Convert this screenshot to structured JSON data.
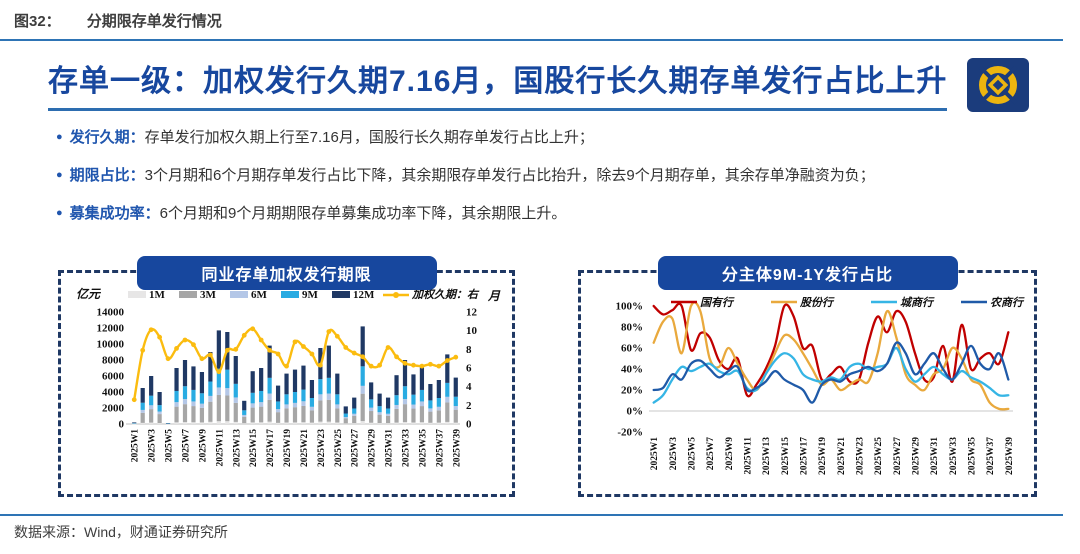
{
  "page": {
    "figure_label": "图32：",
    "figure_title": "分期限存单发行情况",
    "headline": "存单一级：加权发行久期7.16月，国股行长久期存单发行占比上升",
    "source": "数据来源：Wind，财通证券研究所"
  },
  "bullets": [
    {
      "label": "发行久期：",
      "text": "存单发行加权久期上行至7.16月，国股行长久期存单发行占比上升；"
    },
    {
      "label": "期限占比：",
      "text": "3个月期和6个月期存单发行占比下降，其余期限存单发行占比抬升，除去9个月期存单，其余存单净融资为负；"
    },
    {
      "label": "募集成功率：",
      "text": "6个月期和9个月期期限存单募集成功率下降，其余期限上升。"
    }
  ],
  "colors": {
    "rule_blue": "#2e74b5",
    "headline_blue": "#17479e",
    "pill_navy": "#17479e",
    "dashed_border_navy": "#1f3864",
    "logo_navy": "#1b3c7c",
    "logo_gold": "#edb50f"
  },
  "chart_data": [
    {
      "type": "bar",
      "title": "同业存单加权发行期限",
      "left_axis_label": "亿元",
      "right_axis_label": "月",
      "left_ylim": [
        0,
        14000
      ],
      "left_ticks": [
        0,
        2000,
        4000,
        6000,
        8000,
        10000,
        12000,
        14000
      ],
      "right_ylim": [
        0,
        12
      ],
      "right_ticks": [
        0,
        2,
        4,
        6,
        8,
        10,
        12
      ],
      "legend_position": "top",
      "grid": false,
      "x": [
        "2025W1",
        "2025W2",
        "2025W3",
        "2025W4",
        "2025W5",
        "2025W6",
        "2025W7",
        "2025W8",
        "2025W9",
        "2025W10",
        "2025W11",
        "2025W12",
        "2025W13",
        "2025W14",
        "2025W15",
        "2025W16",
        "2025W17",
        "2025W18",
        "2025W19",
        "2025W20",
        "2025W21",
        "2025W22",
        "2025W23",
        "2025W24",
        "2025W25",
        "2025W26",
        "2025W27",
        "2025W28",
        "2025W29",
        "2025W30",
        "2025W31",
        "2025W32",
        "2025W33",
        "2025W34",
        "2025W35",
        "2025W36",
        "2025W37",
        "2025W38",
        "2025W39"
      ],
      "series": [
        {
          "name": "1M",
          "type": "bar",
          "color": "#e7e6e6",
          "values": [
            10,
            140,
            180,
            120,
            5,
            210,
            240,
            220,
            200,
            270,
            350,
            350,
            260,
            90,
            200,
            210,
            290,
            140,
            190,
            200,
            220,
            170,
            290,
            290,
            190,
            70,
            100,
            370,
            160,
            110,
            100,
            180,
            240,
            190,
            220,
            150,
            170,
            260,
            170
          ]
        },
        {
          "name": "3M",
          "type": "bar",
          "color": "#a6a6a6",
          "values": [
            60,
            1260,
            1680,
            1120,
            30,
            1960,
            2240,
            2020,
            1820,
            2520,
            3280,
            3220,
            2380,
            810,
            1850,
            1960,
            2740,
            1340,
            1760,
            1900,
            2040,
            1540,
            2660,
            2740,
            1760,
            620,
            920,
            3420,
            1460,
            1060,
            920,
            1710,
            2240,
            1740,
            2020,
            1400,
            1540,
            2440,
            1620
          ]
        },
        {
          "name": "6M",
          "type": "bar",
          "color": "#b4c7e7",
          "values": [
            15,
            360,
            480,
            320,
            10,
            560,
            640,
            580,
            520,
            720,
            940,
            920,
            680,
            230,
            530,
            560,
            780,
            380,
            500,
            540,
            580,
            440,
            760,
            780,
            500,
            180,
            260,
            980,
            420,
            300,
            260,
            490,
            640,
            500,
            580,
            400,
            440,
            700,
            460
          ]
        },
        {
          "name": "9M",
          "type": "bar",
          "color": "#29abe2",
          "values": [
            40,
            900,
            1200,
            800,
            20,
            1400,
            1600,
            1440,
            1300,
            1800,
            2340,
            2300,
            1700,
            580,
            1320,
            1400,
            1960,
            960,
            1260,
            1360,
            1460,
            1100,
            1900,
            1960,
            1260,
            440,
            660,
            2440,
            1040,
            760,
            660,
            1220,
            1600,
            1240,
            1440,
            1000,
            1100,
            1740,
            1160
          ]
        },
        {
          "name": "12M",
          "type": "bar",
          "color": "#1f3864",
          "values": [
            75,
            1840,
            2460,
            1640,
            35,
            2870,
            3280,
            2940,
            2660,
            3690,
            4790,
            4710,
            3480,
            1190,
            2700,
            2870,
            4030,
            1980,
            2590,
            2800,
            3000,
            2250,
            3890,
            4030,
            2590,
            890,
            1360,
            4990,
            2120,
            1570,
            1360,
            2500,
            3280,
            2530,
            2940,
            2050,
            2250,
            3560,
            2390
          ]
        },
        {
          "name": "加权久期：右",
          "type": "line",
          "axis": "right",
          "color": "#fbbc0f",
          "values": [
            2.6,
            7.9,
            10.1,
            9.3,
            7.0,
            8.1,
            9.0,
            8.5,
            7.0,
            7.4,
            5.6,
            7.9,
            8.0,
            9.5,
            10.2,
            9.0,
            7.9,
            7.5,
            6.2,
            8.8,
            8.3,
            7.5,
            6.3,
            9.9,
            9.4,
            8.2,
            7.6,
            7.2,
            6.2,
            6.3,
            8.2,
            7.2,
            6.5,
            6.3,
            6.2,
            6.4,
            6.2,
            6.8,
            7.16
          ]
        }
      ]
    },
    {
      "type": "line",
      "title": "分主体9M-1Y发行占比",
      "ylim": [
        -20,
        100
      ],
      "yticks": [
        {
          "value": 100,
          "label": "100%"
        },
        {
          "value": 80,
          "label": "80%"
        },
        {
          "value": 60,
          "label": "60%"
        },
        {
          "value": 40,
          "label": "40%"
        },
        {
          "value": 20,
          "label": "20%"
        },
        {
          "value": 0,
          "label": "0%"
        },
        {
          "value": -20,
          "label": "-20%"
        }
      ],
      "legend_position": "top",
      "grid": false,
      "x": [
        "2025W1",
        "2025W2",
        "2025W3",
        "2025W4",
        "2025W5",
        "2025W6",
        "2025W7",
        "2025W8",
        "2025W9",
        "2025W10",
        "2025W11",
        "2025W12",
        "2025W13",
        "2025W14",
        "2025W15",
        "2025W16",
        "2025W17",
        "2025W18",
        "2025W19",
        "2025W20",
        "2025W21",
        "2025W22",
        "2025W23",
        "2025W24",
        "2025W25",
        "2025W26",
        "2025W27",
        "2025W28",
        "2025W29",
        "2025W30",
        "2025W31",
        "2025W32",
        "2025W33",
        "2025W34",
        "2025W35",
        "2025W36",
        "2025W37",
        "2025W38",
        "2025W39"
      ],
      "series": [
        {
          "name": "国有行",
          "color": "#c00000",
          "values": [
            100,
            92,
            96,
            100,
            58,
            74,
            70,
            48,
            40,
            50,
            15,
            25,
            40,
            62,
            100,
            90,
            60,
            62,
            30,
            35,
            42,
            28,
            30,
            65,
            90,
            75,
            95,
            85,
            55,
            30,
            32,
            62,
            28,
            82,
            40,
            50,
            55,
            45,
            75
          ]
        },
        {
          "name": "股份行",
          "color": "#e9a93d",
          "values": [
            65,
            85,
            88,
            55,
            100,
            95,
            50,
            42,
            60,
            45,
            30,
            20,
            35,
            55,
            72,
            68,
            55,
            40,
            25,
            30,
            20,
            25,
            30,
            28,
            55,
            95,
            70,
            35,
            25,
            20,
            35,
            40,
            60,
            50,
            30,
            25,
            8,
            2,
            2
          ]
        },
        {
          "name": "城商行",
          "color": "#35b5e5",
          "values": [
            8,
            15,
            30,
            42,
            38,
            42,
            45,
            38,
            35,
            38,
            22,
            20,
            35,
            48,
            55,
            50,
            35,
            30,
            28,
            32,
            30,
            42,
            45,
            40,
            42,
            45,
            60,
            40,
            28,
            35,
            42,
            35,
            30,
            38,
            32,
            28,
            22,
            15,
            15
          ]
        },
        {
          "name": "农商行",
          "color": "#1f5aa8",
          "values": [
            20,
            22,
            35,
            30,
            45,
            48,
            40,
            32,
            38,
            42,
            20,
            22,
            28,
            38,
            30,
            25,
            20,
            8,
            25,
            30,
            28,
            35,
            38,
            42,
            38,
            45,
            65,
            55,
            35,
            45,
            55,
            40,
            30,
            45,
            62,
            45,
            40,
            55,
            30
          ]
        }
      ]
    }
  ]
}
